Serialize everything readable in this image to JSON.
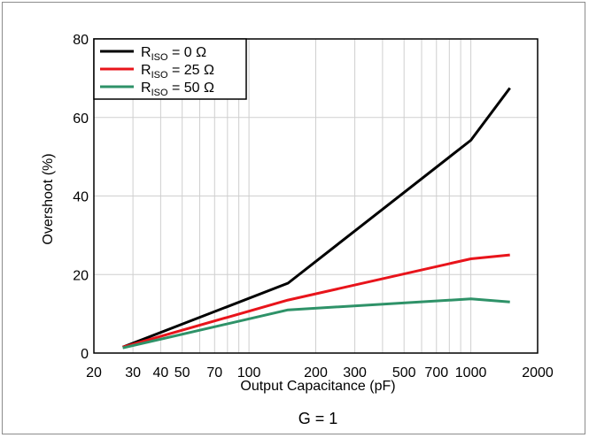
{
  "chart_data": {
    "type": "line",
    "x_scale": "log",
    "xlim": [
      20,
      2000
    ],
    "ylim": [
      0,
      80
    ],
    "xlabel": "Output Capacitance (pF)",
    "ylabel": "Overshoot (%)",
    "x_ticks": [
      20,
      30,
      40,
      50,
      70,
      100,
      200,
      300,
      500,
      700,
      1000,
      2000
    ],
    "x_tick_labels": [
      "20",
      "30",
      "40",
      "50",
      "70",
      "100",
      "200",
      "300",
      "500",
      "700",
      "1000",
      "2000"
    ],
    "x_minor_gridlines": [
      60,
      80,
      90,
      400,
      600,
      800,
      900
    ],
    "y_ticks": [
      0,
      20,
      40,
      60,
      80
    ],
    "y_tick_labels": [
      "0",
      "20",
      "40",
      "60",
      "80"
    ],
    "grid": true,
    "legend_position": "top-left",
    "series": [
      {
        "name": "R",
        "name_sub": "ISO",
        "name_rest": " = 0 Ω",
        "color": "#000000",
        "x": [
          27,
          150,
          1000,
          1500
        ],
        "y": [
          1.5,
          17.8,
          54.2,
          67.5
        ]
      },
      {
        "name": "R",
        "name_sub": "ISO",
        "name_rest": " = 25 Ω",
        "color": "#e8141b",
        "x": [
          27,
          150,
          1000,
          1500
        ],
        "y": [
          1.5,
          13.5,
          24.0,
          25.0
        ]
      },
      {
        "name": "R",
        "name_sub": "ISO",
        "name_rest": " = 50 Ω",
        "color": "#2e9268",
        "x": [
          27,
          150,
          1000,
          1500
        ],
        "y": [
          1.3,
          11.0,
          13.8,
          13.0
        ]
      }
    ]
  },
  "caption": "G = 1"
}
